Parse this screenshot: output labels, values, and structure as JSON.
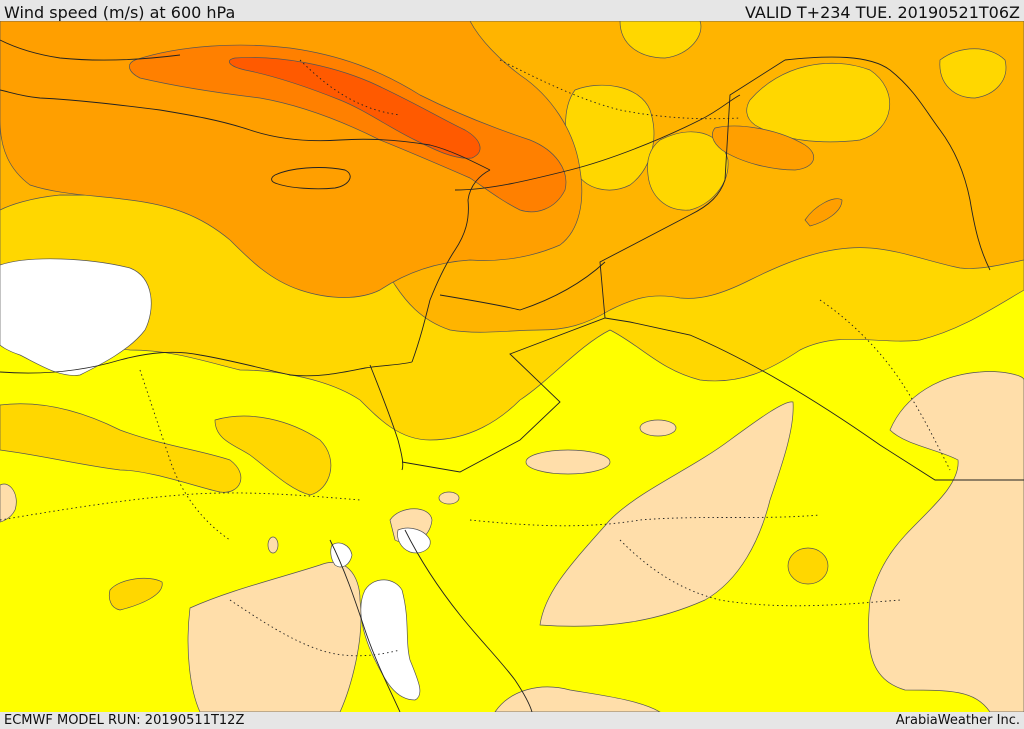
{
  "header": {
    "title": "Wind speed (m/s) at 600 hPa",
    "valid": "VALID T+234 TUE. 20190521T06Z"
  },
  "footer": {
    "model_run": "ECMWF MODEL RUN: 20190511T12Z",
    "credit": "ArabiaWeather Inc."
  },
  "colors": {
    "low_speed_tan": "#ffdeaa",
    "yellow": "#ffff00",
    "gold": "#ffd700",
    "amber": "#ffb400",
    "orange": "#ff9f00",
    "dark_orange": "#ff8000",
    "core_red_orange": "#ff5a00",
    "no_data_white": "#ffffff"
  }
}
